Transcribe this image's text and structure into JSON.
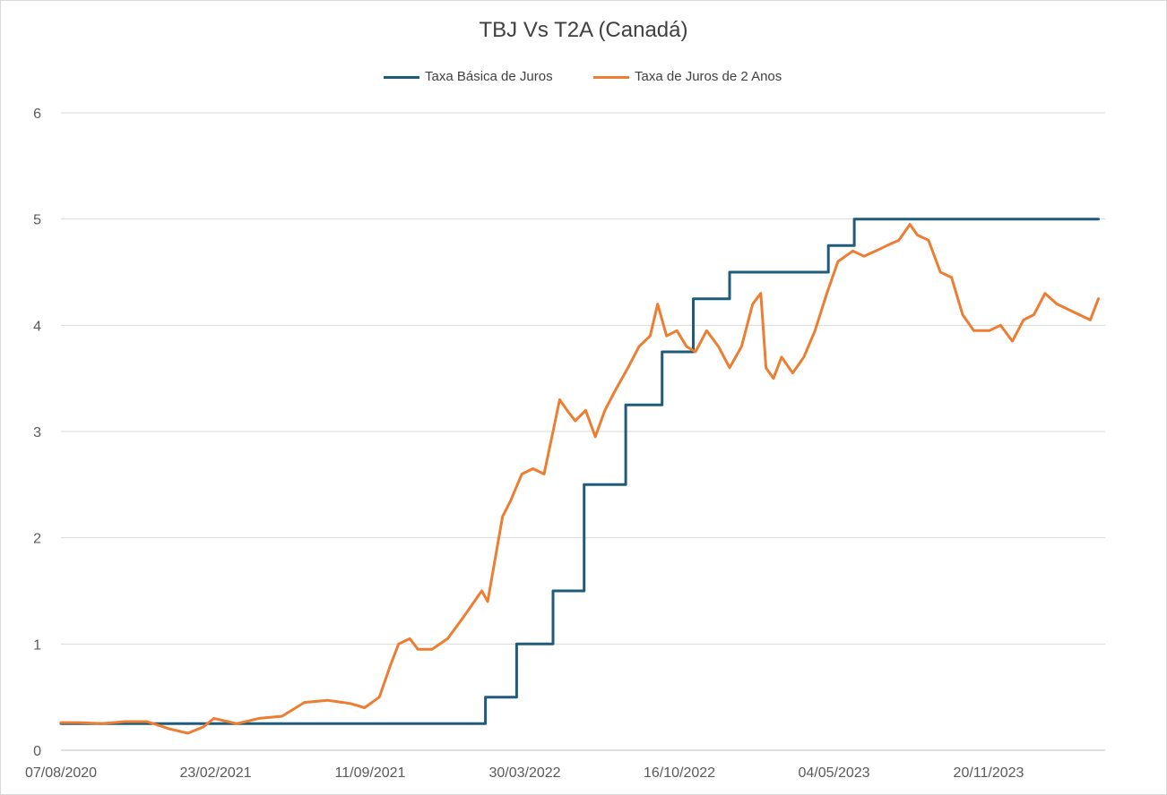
{
  "chart_data": {
    "type": "line",
    "title": "TBJ Vs T2A (Canadá)",
    "ylim": [
      0,
      6
    ],
    "y_ticks": [
      "0",
      "1",
      "2",
      "3",
      "4",
      "5",
      "6"
    ],
    "x_range": [
      "2020-08-07",
      "2024-06-14"
    ],
    "x_tick_labels": [
      "07/08/2020",
      "23/02/2021",
      "11/09/2021",
      "30/03/2022",
      "16/10/2022",
      "04/05/2023",
      "20/11/2023"
    ],
    "grid": "horizontal",
    "legend_position": "top",
    "series": [
      {
        "name": "Taxa Básica de Juros",
        "color": "#1f5c7a",
        "step": true,
        "points": [
          [
            "2020-08-07",
            0.25
          ],
          [
            "2022-03-02",
            0.25
          ],
          [
            "2022-03-02",
            0.5
          ],
          [
            "2022-04-13",
            0.5
          ],
          [
            "2022-04-13",
            1.0
          ],
          [
            "2022-06-01",
            1.0
          ],
          [
            "2022-06-01",
            1.5
          ],
          [
            "2022-07-13",
            1.5
          ],
          [
            "2022-07-13",
            2.5
          ],
          [
            "2022-09-07",
            2.5
          ],
          [
            "2022-09-07",
            3.25
          ],
          [
            "2022-10-26",
            3.25
          ],
          [
            "2022-10-26",
            3.75
          ],
          [
            "2022-12-07",
            3.75
          ],
          [
            "2022-12-07",
            4.25
          ],
          [
            "2023-01-25",
            4.25
          ],
          [
            "2023-01-25",
            4.5
          ],
          [
            "2023-06-07",
            4.5
          ],
          [
            "2023-06-07",
            4.75
          ],
          [
            "2023-07-12",
            4.75
          ],
          [
            "2023-07-12",
            5.0
          ],
          [
            "2024-06-05",
            5.0
          ]
        ]
      },
      {
        "name": "Taxa de Juros de 2 Anos",
        "color": "#ed7d31",
        "points": [
          [
            "2020-08-07",
            0.26
          ],
          [
            "2020-09-01",
            0.26
          ],
          [
            "2020-10-01",
            0.25
          ],
          [
            "2020-11-01",
            0.27
          ],
          [
            "2020-12-01",
            0.27
          ],
          [
            "2021-01-01",
            0.2
          ],
          [
            "2021-01-25",
            0.16
          ],
          [
            "2021-02-15",
            0.22
          ],
          [
            "2021-03-01",
            0.3
          ],
          [
            "2021-04-01",
            0.25
          ],
          [
            "2021-05-01",
            0.3
          ],
          [
            "2021-06-01",
            0.32
          ],
          [
            "2021-07-01",
            0.45
          ],
          [
            "2021-08-01",
            0.47
          ],
          [
            "2021-09-01",
            0.44
          ],
          [
            "2021-09-20",
            0.4
          ],
          [
            "2021-10-10",
            0.5
          ],
          [
            "2021-10-25",
            0.8
          ],
          [
            "2021-11-05",
            1.0
          ],
          [
            "2021-11-20",
            1.05
          ],
          [
            "2021-12-01",
            0.95
          ],
          [
            "2021-12-20",
            0.95
          ],
          [
            "2022-01-10",
            1.05
          ],
          [
            "2022-01-31",
            1.25
          ],
          [
            "2022-02-15",
            1.4
          ],
          [
            "2022-02-25",
            1.5
          ],
          [
            "2022-03-05",
            1.4
          ],
          [
            "2022-03-15",
            1.8
          ],
          [
            "2022-03-25",
            2.2
          ],
          [
            "2022-04-05",
            2.35
          ],
          [
            "2022-04-20",
            2.6
          ],
          [
            "2022-05-05",
            2.65
          ],
          [
            "2022-05-20",
            2.6
          ],
          [
            "2022-06-01",
            3.0
          ],
          [
            "2022-06-10",
            3.3
          ],
          [
            "2022-06-20",
            3.2
          ],
          [
            "2022-07-01",
            3.1
          ],
          [
            "2022-07-15",
            3.2
          ],
          [
            "2022-07-28",
            2.95
          ],
          [
            "2022-08-10",
            3.2
          ],
          [
            "2022-08-25",
            3.4
          ],
          [
            "2022-09-10",
            3.6
          ],
          [
            "2022-09-25",
            3.8
          ],
          [
            "2022-10-10",
            3.9
          ],
          [
            "2022-10-20",
            4.2
          ],
          [
            "2022-11-01",
            3.9
          ],
          [
            "2022-11-15",
            3.95
          ],
          [
            "2022-11-28",
            3.8
          ],
          [
            "2022-12-10",
            3.75
          ],
          [
            "2022-12-25",
            3.95
          ],
          [
            "2023-01-10",
            3.8
          ],
          [
            "2023-01-25",
            3.6
          ],
          [
            "2023-02-10",
            3.8
          ],
          [
            "2023-02-25",
            4.2
          ],
          [
            "2023-03-08",
            4.3
          ],
          [
            "2023-03-15",
            3.6
          ],
          [
            "2023-03-25",
            3.5
          ],
          [
            "2023-04-05",
            3.7
          ],
          [
            "2023-04-20",
            3.55
          ],
          [
            "2023-05-05",
            3.7
          ],
          [
            "2023-05-20",
            3.95
          ],
          [
            "2023-06-05",
            4.3
          ],
          [
            "2023-06-20",
            4.6
          ],
          [
            "2023-07-10",
            4.7
          ],
          [
            "2023-07-25",
            4.65
          ],
          [
            "2023-08-10",
            4.7
          ],
          [
            "2023-08-25",
            4.75
          ],
          [
            "2023-09-10",
            4.8
          ],
          [
            "2023-09-25",
            4.95
          ],
          [
            "2023-10-05",
            4.85
          ],
          [
            "2023-10-20",
            4.8
          ],
          [
            "2023-11-05",
            4.5
          ],
          [
            "2023-11-20",
            4.45
          ],
          [
            "2023-12-05",
            4.1
          ],
          [
            "2023-12-20",
            3.95
          ],
          [
            "2024-01-10",
            3.95
          ],
          [
            "2024-01-25",
            4.0
          ],
          [
            "2024-02-10",
            3.85
          ],
          [
            "2024-02-25",
            4.05
          ],
          [
            "2024-03-10",
            4.1
          ],
          [
            "2024-03-25",
            4.3
          ],
          [
            "2024-04-10",
            4.2
          ],
          [
            "2024-04-25",
            4.15
          ],
          [
            "2024-05-10",
            4.1
          ],
          [
            "2024-05-25",
            4.05
          ],
          [
            "2024-06-05",
            4.25
          ]
        ]
      }
    ]
  }
}
